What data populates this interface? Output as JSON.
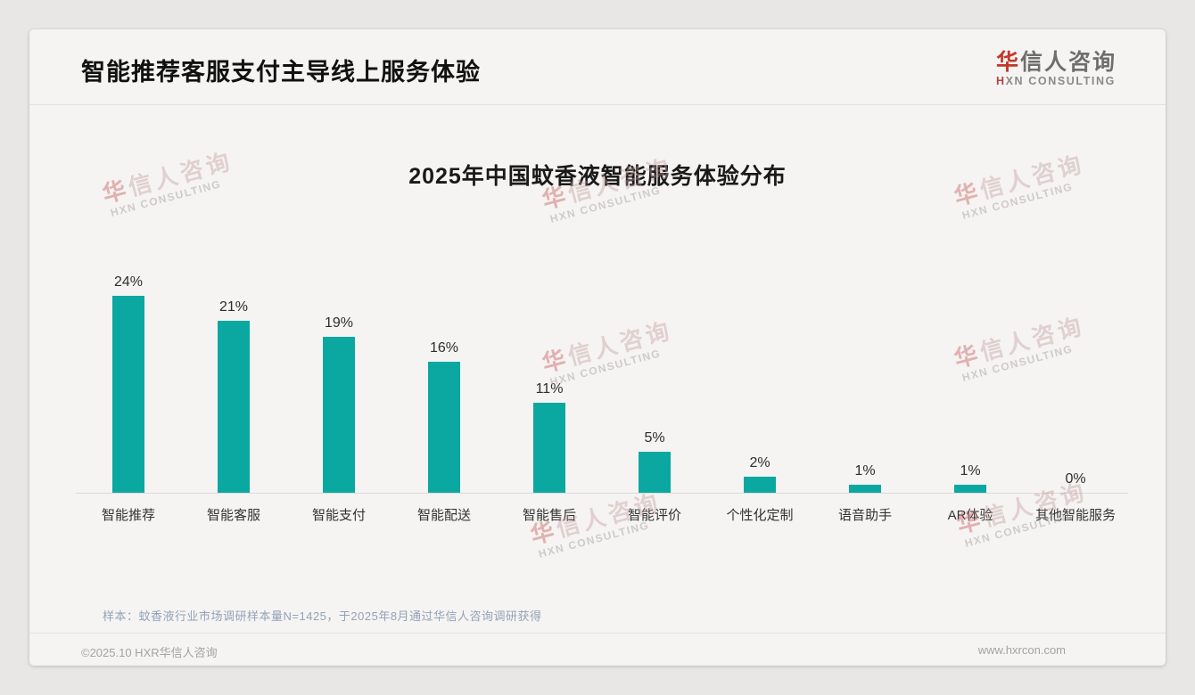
{
  "page": {
    "header": {
      "title": "智能推荐客服支付主导线上服务体验"
    },
    "logo": {
      "cn_first": "华",
      "cn_rest": "信人咨询",
      "en_first": "H",
      "en_rest": "XN CONSULTING"
    },
    "watermark": {
      "cn_first": "华",
      "cn_rest": "信人咨询",
      "en": "HXN CONSULTING"
    },
    "note": "样本：蚊香液行业市场调研样本量N=1425，于2025年8月通过华信人咨询调研获得",
    "footer": {
      "copyright": "©2025.10 HXR华信人咨询",
      "website": "www.hxrcon.com"
    }
  },
  "chart_data": {
    "type": "bar",
    "title": "2025年中国蚊香液智能服务体验分布",
    "categories": [
      "智能推荐",
      "智能客服",
      "智能支付",
      "智能配送",
      "智能售后",
      "智能评价",
      "个性化定制",
      "语音助手",
      "AR体验",
      "其他智能服务"
    ],
    "values": [
      24,
      21,
      19,
      16,
      11,
      5,
      2,
      1,
      1,
      0
    ],
    "value_suffix": "%",
    "xlabel": "",
    "ylabel": "",
    "ylim": [
      0,
      26
    ],
    "grid": false,
    "legend": false,
    "value_labels": "above-bars",
    "bar_color": "#0aa8a0"
  },
  "colors": {
    "bar_teal": "#0aa8a0",
    "logo_red": "#c0392b",
    "note_blue_gray": "#93a2b8",
    "footer_gray": "#a3a3a3",
    "card_bg": "#f5f4f2",
    "page_bg": "#e8e7e6"
  }
}
